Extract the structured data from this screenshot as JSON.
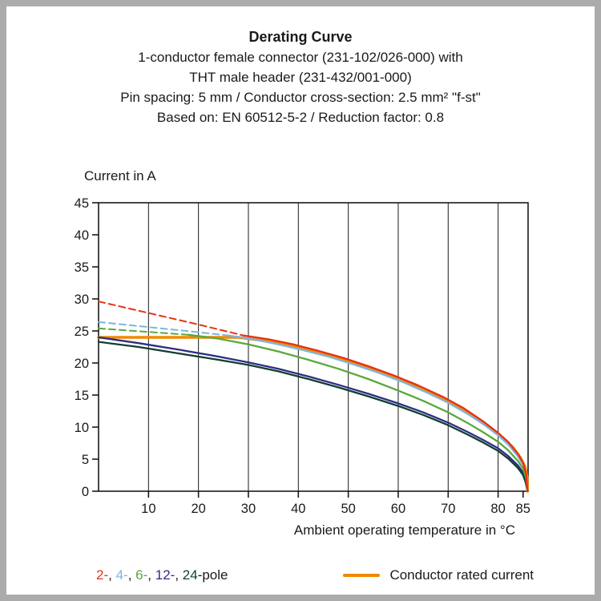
{
  "header": {
    "title": "Derating Curve",
    "lines": [
      "1-conductor female connector (231-102/026-000) with",
      "THT male header (231-432/001-000)",
      "Pin spacing: 5 mm / Conductor cross-section: 2.5 mm² \"f-st\"",
      "Based on: EN 60512-5-2 / Reduction factor: 0.8"
    ]
  },
  "chart_data": {
    "type": "line",
    "title": "Derating Curve",
    "xlabel": "Ambient operating temperature in °C",
    "ylabel": "Current in A",
    "xlim": [
      0,
      86
    ],
    "ylim": [
      0,
      45
    ],
    "x_ticks": [
      10,
      20,
      30,
      40,
      50,
      60,
      70,
      80,
      85
    ],
    "y_ticks": [
      0,
      5,
      10,
      15,
      20,
      25,
      30,
      35,
      40,
      45
    ],
    "grid": "vertical-only",
    "legend_position": "bottom",
    "series": [
      {
        "name": "conductor-rated-current",
        "color": "#f18a00",
        "width": 3.5,
        "points": [
          [
            0,
            24
          ],
          [
            28,
            24
          ],
          [
            33,
            23.5
          ],
          [
            38,
            22.8
          ],
          [
            43,
            21.9
          ],
          [
            48,
            20.8
          ],
          [
            53,
            19.6
          ],
          [
            58,
            18.2
          ],
          [
            63,
            16.6
          ],
          [
            68,
            14.8
          ],
          [
            72,
            13.1
          ],
          [
            76,
            11.1
          ],
          [
            79,
            9.5
          ],
          [
            81,
            8.3
          ],
          [
            83,
            6.8
          ],
          [
            84.5,
            5.2
          ],
          [
            85.4,
            3.8
          ],
          [
            85.8,
            2.2
          ],
          [
            85.9,
            0
          ]
        ]
      },
      {
        "name": "2-pole-dashed",
        "color": "#e63312",
        "width": 2,
        "dash": "8 5",
        "points": [
          [
            0,
            29.6
          ],
          [
            10,
            27.8
          ],
          [
            20,
            26.0
          ],
          [
            29,
            24.3
          ]
        ]
      },
      {
        "name": "4-pole-dashed",
        "color": "#7eb5e0",
        "width": 2,
        "dash": "8 5",
        "points": [
          [
            0,
            26.4
          ],
          [
            10,
            25.6
          ],
          [
            20,
            24.8
          ],
          [
            26,
            24.3
          ]
        ]
      },
      {
        "name": "6-pole-dashed",
        "color": "#5aa83c",
        "width": 2,
        "dash": "8 5",
        "points": [
          [
            0,
            25.4
          ],
          [
            9,
            24.9
          ],
          [
            18,
            24.4
          ]
        ]
      },
      {
        "name": "12-pole",
        "color": "#2d2e83",
        "width": 2.3,
        "points": [
          [
            0,
            24.0
          ],
          [
            8,
            23.1
          ],
          [
            16,
            22.1
          ],
          [
            24,
            21.0
          ],
          [
            30,
            20.1
          ],
          [
            36,
            19.1
          ],
          [
            42,
            17.9
          ],
          [
            48,
            16.6
          ],
          [
            54,
            15.2
          ],
          [
            60,
            13.7
          ],
          [
            65,
            12.3
          ],
          [
            70,
            10.7
          ],
          [
            74,
            9.2
          ],
          [
            77,
            8.0
          ],
          [
            80,
            6.7
          ],
          [
            82,
            5.5
          ],
          [
            84,
            4.0
          ],
          [
            85,
            2.9
          ],
          [
            85.5,
            1.7
          ],
          [
            85.9,
            0
          ]
        ]
      },
      {
        "name": "24-pole",
        "color": "#123d33",
        "width": 2.3,
        "points": [
          [
            0,
            23.3
          ],
          [
            8,
            22.5
          ],
          [
            16,
            21.5
          ],
          [
            24,
            20.5
          ],
          [
            30,
            19.7
          ],
          [
            36,
            18.7
          ],
          [
            42,
            17.5
          ],
          [
            48,
            16.2
          ],
          [
            54,
            14.8
          ],
          [
            60,
            13.3
          ],
          [
            65,
            11.9
          ],
          [
            70,
            10.3
          ],
          [
            74,
            8.8
          ],
          [
            77,
            7.6
          ],
          [
            80,
            6.3
          ],
          [
            82,
            5.1
          ],
          [
            84,
            3.6
          ],
          [
            85,
            2.5
          ],
          [
            85.5,
            1.4
          ],
          [
            85.9,
            0
          ]
        ]
      },
      {
        "name": "4-pole",
        "color": "#7eb5e0",
        "width": 2.3,
        "points": [
          [
            26,
            24.3
          ],
          [
            31,
            23.7
          ],
          [
            36,
            22.9
          ],
          [
            41,
            22.0
          ],
          [
            46,
            21.0
          ],
          [
            51,
            19.8
          ],
          [
            56,
            18.5
          ],
          [
            61,
            17.0
          ],
          [
            66,
            15.3
          ],
          [
            70,
            13.8
          ],
          [
            74,
            12.0
          ],
          [
            77,
            10.5
          ],
          [
            80,
            8.7
          ],
          [
            82,
            7.3
          ],
          [
            84,
            5.4
          ],
          [
            85,
            4.1
          ],
          [
            85.6,
            2.4
          ],
          [
            85.9,
            0
          ]
        ]
      },
      {
        "name": "6-pole",
        "color": "#5aa83c",
        "width": 2.3,
        "points": [
          [
            18,
            24.4
          ],
          [
            24,
            23.8
          ],
          [
            30,
            22.9
          ],
          [
            36,
            21.8
          ],
          [
            42,
            20.5
          ],
          [
            48,
            19.1
          ],
          [
            54,
            17.5
          ],
          [
            60,
            15.7
          ],
          [
            65,
            14.1
          ],
          [
            70,
            12.3
          ],
          [
            74,
            10.6
          ],
          [
            77,
            9.2
          ],
          [
            80,
            7.7
          ],
          [
            82,
            6.4
          ],
          [
            84,
            4.7
          ],
          [
            85,
            3.5
          ],
          [
            85.6,
            2.0
          ],
          [
            85.9,
            0
          ]
        ]
      },
      {
        "name": "2-pole",
        "color": "#e63312",
        "width": 2.3,
        "points": [
          [
            29,
            24.3
          ],
          [
            34,
            23.7
          ],
          [
            39,
            22.9
          ],
          [
            44,
            21.9
          ],
          [
            49,
            20.8
          ],
          [
            54,
            19.5
          ],
          [
            59,
            18.1
          ],
          [
            64,
            16.5
          ],
          [
            69,
            14.7
          ],
          [
            73,
            13.0
          ],
          [
            77,
            10.9
          ],
          [
            80,
            9.1
          ],
          [
            82,
            7.7
          ],
          [
            84,
            5.8
          ],
          [
            85,
            4.4
          ],
          [
            85.6,
            2.7
          ],
          [
            85.9,
            0
          ]
        ]
      }
    ]
  },
  "legend": {
    "poles": [
      {
        "text": "2-",
        "color": "#e63312"
      },
      {
        "text": ", ",
        "color": "#1a1a1a"
      },
      {
        "text": "4-",
        "color": "#7eb5e0"
      },
      {
        "text": ", ",
        "color": "#1a1a1a"
      },
      {
        "text": "6-",
        "color": "#5aa83c"
      },
      {
        "text": ", ",
        "color": "#1a1a1a"
      },
      {
        "text": "12-",
        "color": "#2d2e83"
      },
      {
        "text": ", ",
        "color": "#1a1a1a"
      },
      {
        "text": "24",
        "color": "#123d33"
      },
      {
        "text": "-pole",
        "color": "#1a1a1a"
      }
    ],
    "rated": {
      "label": "Conductor rated current",
      "color": "#f18a00"
    }
  }
}
